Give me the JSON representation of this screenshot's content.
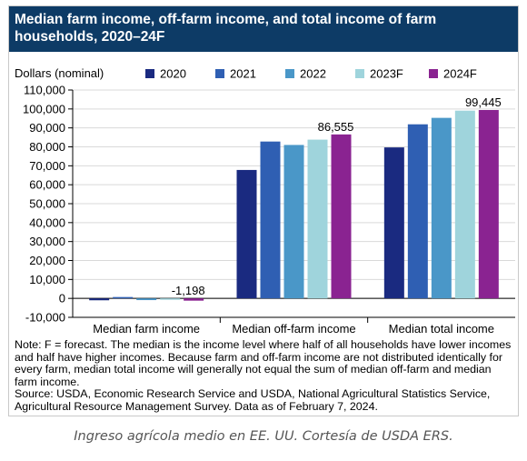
{
  "chart_data": {
    "type": "bar",
    "title": "Median farm income, off-farm income, and total income of farm households, 2020–24F",
    "ylabel": "Dollars (nominal)",
    "categories": [
      "Median farm income",
      "Median off-farm income",
      "Median total income"
    ],
    "series": [
      {
        "name": "2020",
        "color": "#1a2a80",
        "values": [
          -1000,
          67800,
          79700
        ]
      },
      {
        "name": "2021",
        "color": "#2f5fb3",
        "values": [
          250,
          82800,
          91900
        ]
      },
      {
        "name": "2022",
        "color": "#4a97c8",
        "values": [
          -900,
          81000,
          95300
        ]
      },
      {
        "name": "2023F",
        "color": "#9fd4dc",
        "values": [
          -100,
          83800,
          99100
        ]
      },
      {
        "name": "2024F",
        "color": "#8a2391",
        "values": [
          -1198,
          86555,
          99445
        ]
      }
    ],
    "data_labels": [
      {
        "category": 0,
        "series": 4,
        "text": "-1,198"
      },
      {
        "category": 1,
        "series": 4,
        "text": "86,555"
      },
      {
        "category": 2,
        "series": 4,
        "text": "99,445"
      }
    ],
    "ylim": [
      -10000,
      110000
    ],
    "yticks": [
      -10000,
      0,
      10000,
      20000,
      30000,
      40000,
      50000,
      60000,
      70000,
      80000,
      90000,
      100000,
      110000
    ],
    "ytick_labels": [
      "-10,000",
      "0",
      "10,000",
      "20,000",
      "30,000",
      "40,000",
      "50,000",
      "60,000",
      "70,000",
      "80,000",
      "90,000",
      "100,000",
      "110,000"
    ],
    "grid": true,
    "legend_placement": "top"
  },
  "note": "Note: F = forecast. The median is the income level where half of all households have lower incomes and half have higher incomes. Because farm and off-farm income are not distributed identically for every farm, median total income will generally not equal the sum of median off-farm and median farm income.\nSource: USDA, Economic Research Service and USDA, National Agricultural Statistics Service, Agricultural Resource Management Survey. Data as of February 7, 2024.",
  "caption": "Ingreso agrícola medio en EE. UU. Cortesía de USDA ERS."
}
